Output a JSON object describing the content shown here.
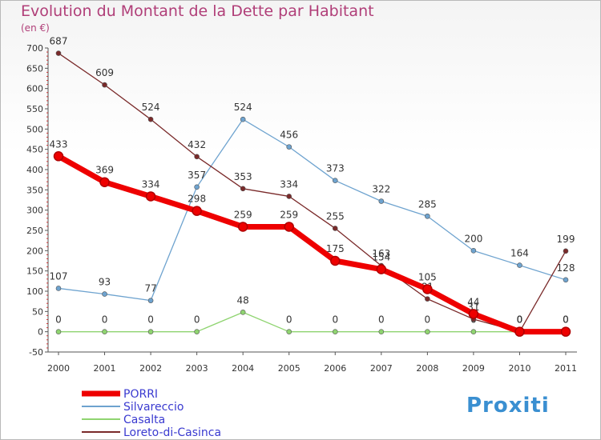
{
  "title": "Evolution du Montant de la Dette par Habitant",
  "subtitle": "(en €)",
  "logo": "Proxiti",
  "chart_data": {
    "type": "line",
    "title": "Evolution du Montant de la Dette par Habitant",
    "ylabel": "(en €)",
    "ylim": [
      -50,
      700
    ],
    "yticks": [
      -50,
      0,
      50,
      100,
      150,
      200,
      250,
      300,
      350,
      400,
      450,
      500,
      550,
      600,
      650,
      700
    ],
    "x": [
      "2000",
      "2001",
      "2002",
      "2003",
      "2004",
      "2005",
      "2006",
      "2007",
      "2008",
      "2009",
      "2010",
      "2011"
    ],
    "grid": false,
    "legend": "bottom-left",
    "series": [
      {
        "name": "PORRI",
        "color": "#ee0000",
        "values": [
          433,
          369,
          334,
          298,
          259,
          259,
          175,
          154,
          105,
          44,
          0,
          0
        ]
      },
      {
        "name": "Silvareccio",
        "color": "#6ea3cf",
        "values": [
          107,
          93,
          77,
          357,
          524,
          456,
          373,
          322,
          285,
          200,
          164,
          128
        ]
      },
      {
        "name": "Casalta",
        "color": "#8fd470",
        "values": [
          0,
          0,
          0,
          0,
          48,
          0,
          0,
          0,
          0,
          0,
          0,
          0
        ]
      },
      {
        "name": "Loreto-di-Casinca",
        "color": "#7a2a2a",
        "values": [
          687,
          609,
          524,
          432,
          353,
          334,
          255,
          163,
          81,
          31,
          0,
          199
        ]
      }
    ]
  }
}
